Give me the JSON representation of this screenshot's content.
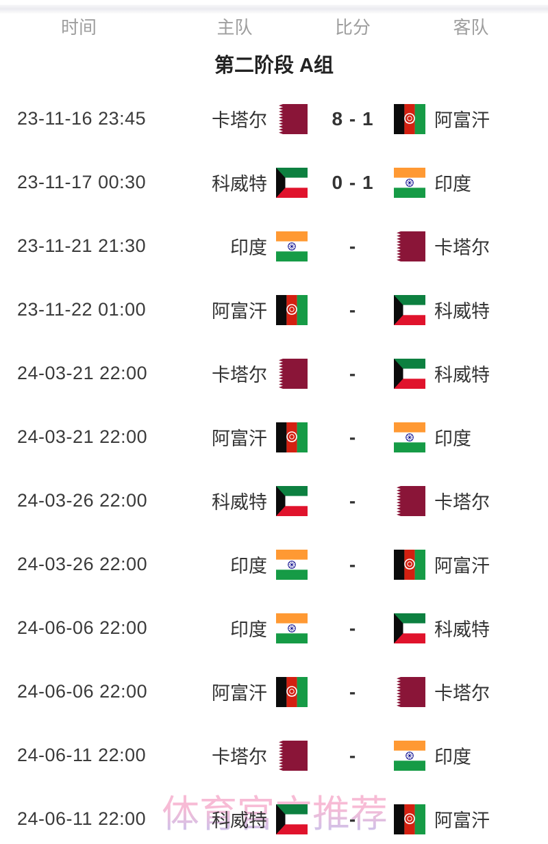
{
  "header": {
    "columns": [
      "时间",
      "主队",
      "比分",
      "客队"
    ]
  },
  "group_title": "第二阶段 A组",
  "watermark": "体育官方推荐",
  "teams": {
    "qatar": {
      "label": "卡塔尔",
      "flag_icon": "qatar-flag-icon"
    },
    "kuwait": {
      "label": "科威特",
      "flag_icon": "kuwait-flag-icon"
    },
    "afghanistan": {
      "label": "阿富汗",
      "flag_icon": "afghanistan-flag-icon"
    },
    "india": {
      "label": "印度",
      "flag_icon": "india-flag-icon"
    }
  },
  "matches": [
    {
      "time": "23-11-16 23:45",
      "home": "卡塔尔",
      "home_flag": "qatar",
      "score": "8 - 1",
      "away": "阿富汗",
      "away_flag": "afghanistan"
    },
    {
      "time": "23-11-17 00:30",
      "home": "科威特",
      "home_flag": "kuwait",
      "score": "0 - 1",
      "away": "印度",
      "away_flag": "india"
    },
    {
      "time": "23-11-21 21:30",
      "home": "印度",
      "home_flag": "india",
      "score": "-",
      "away": "卡塔尔",
      "away_flag": "qatar"
    },
    {
      "time": "23-11-22 01:00",
      "home": "阿富汗",
      "home_flag": "afghanistan",
      "score": "-",
      "away": "科威特",
      "away_flag": "kuwait"
    },
    {
      "time": "24-03-21 22:00",
      "home": "卡塔尔",
      "home_flag": "qatar",
      "score": "-",
      "away": "科威特",
      "away_flag": "kuwait"
    },
    {
      "time": "24-03-21 22:00",
      "home": "阿富汗",
      "home_flag": "afghanistan",
      "score": "-",
      "away": "印度",
      "away_flag": "india"
    },
    {
      "time": "24-03-26 22:00",
      "home": "科威特",
      "home_flag": "kuwait",
      "score": "-",
      "away": "卡塔尔",
      "away_flag": "qatar"
    },
    {
      "time": "24-03-26 22:00",
      "home": "印度",
      "home_flag": "india",
      "score": "-",
      "away": "阿富汗",
      "away_flag": "afghanistan"
    },
    {
      "time": "24-06-06 22:00",
      "home": "印度",
      "home_flag": "india",
      "score": "-",
      "away": "科威特",
      "away_flag": "kuwait"
    },
    {
      "time": "24-06-06 22:00",
      "home": "阿富汗",
      "home_flag": "afghanistan",
      "score": "-",
      "away": "卡塔尔",
      "away_flag": "qatar"
    },
    {
      "time": "24-06-11 22:00",
      "home": "卡塔尔",
      "home_flag": "qatar",
      "score": "-",
      "away": "印度",
      "away_flag": "india"
    },
    {
      "time": "24-06-11 22:00",
      "home": "科威特",
      "home_flag": "kuwait",
      "score": "-",
      "away": "阿富汗",
      "away_flag": "afghanistan"
    }
  ],
  "colors": {
    "text_dark": "#333333",
    "header_gray": "#9e9e9e",
    "qatar_maroon": "#8a1538",
    "kuwait_green": "#0d8040",
    "kuwait_red": "#e0132c",
    "kuwait_black": "#0b0b0b",
    "afghan_black": "#0b0b0b",
    "afghan_red": "#d32011",
    "afghan_green": "#169b46",
    "india_saffron": "#ff9933",
    "india_green": "#169b46",
    "india_navy": "#000088",
    "watermark_pink": "#f6abcb",
    "watermark_lavender": "#b7b4ea"
  }
}
